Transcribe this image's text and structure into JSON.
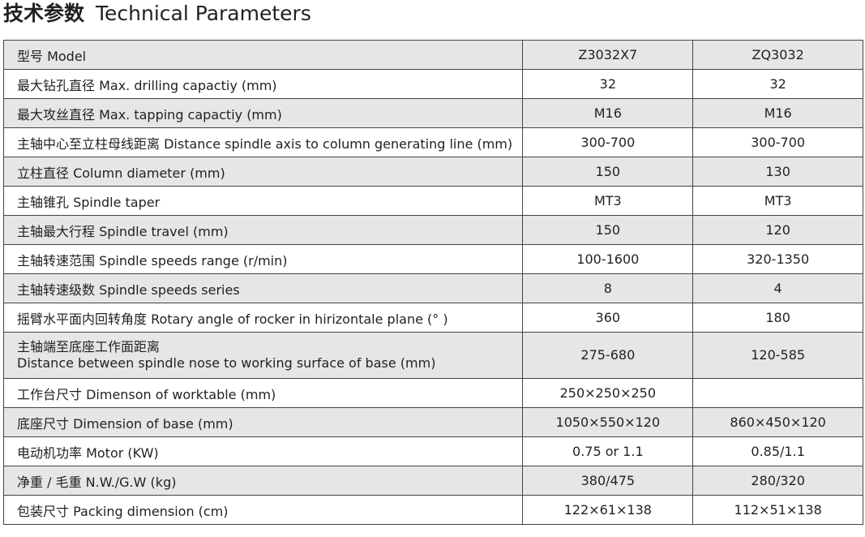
{
  "title": {
    "cn": "技术参数",
    "en": "Technical Parameters"
  },
  "table": {
    "header": {
      "label": "型号  Model",
      "models": [
        "Z3032X7",
        "ZQ3032"
      ]
    },
    "rows": [
      {
        "label": "最大钻孔直径  Max. drilling capactiy (mm)",
        "values": [
          "32",
          "32"
        ]
      },
      {
        "label": "最大攻丝直径  Max. tapping capactiy (mm)",
        "values": [
          "M16",
          "M16"
        ]
      },
      {
        "label": "主轴中心至立柱母线距离  Distance spindle axis to column generating line (mm)",
        "values": [
          "300-700",
          "300-700"
        ]
      },
      {
        "label": "立柱直径  Column diameter (mm)",
        "values": [
          "150",
          "130"
        ]
      },
      {
        "label": "主轴锥孔  Spindle taper",
        "values": [
          "MT3",
          "MT3"
        ]
      },
      {
        "label": "主轴最大行程  Spindle travel (mm)",
        "values": [
          "150",
          "120"
        ]
      },
      {
        "label": "主轴转速范围  Spindle  speeds range (r/min)",
        "values": [
          "100-1600",
          "320-1350"
        ]
      },
      {
        "label": "主轴转速级数    Spindle speeds series",
        "values": [
          "8",
          "4"
        ]
      },
      {
        "label": "摇臂水平面内回转角度  Rotary angle of rocker in hirizontale plane (° )",
        "values": [
          "360",
          "180"
        ]
      },
      {
        "label": "主轴端至底座工作面距离",
        "label2": "Distance between spindle nose to working surface of base (mm)",
        "values": [
          "275-680",
          "120-585"
        ]
      },
      {
        "label": "工作台尺寸  Dimenson of worktable (mm)",
        "values": [
          "250×250×250",
          ""
        ]
      },
      {
        "label": "底座尺寸  Dimension of base (mm)",
        "values": [
          "1050×550×120",
          "860×450×120"
        ]
      },
      {
        "label": "电动机功率  Motor (KW)",
        "values": [
          "0.75 or 1.1",
          "0.85/1.1"
        ]
      },
      {
        "label": "净重 / 毛重    N.W./G.W (kg)",
        "values": [
          "380/475",
          "280/320"
        ]
      },
      {
        "label": "包装尺寸  Packing dimension (cm)",
        "values": [
          "122×61×138",
          "112×51×138"
        ]
      }
    ]
  }
}
